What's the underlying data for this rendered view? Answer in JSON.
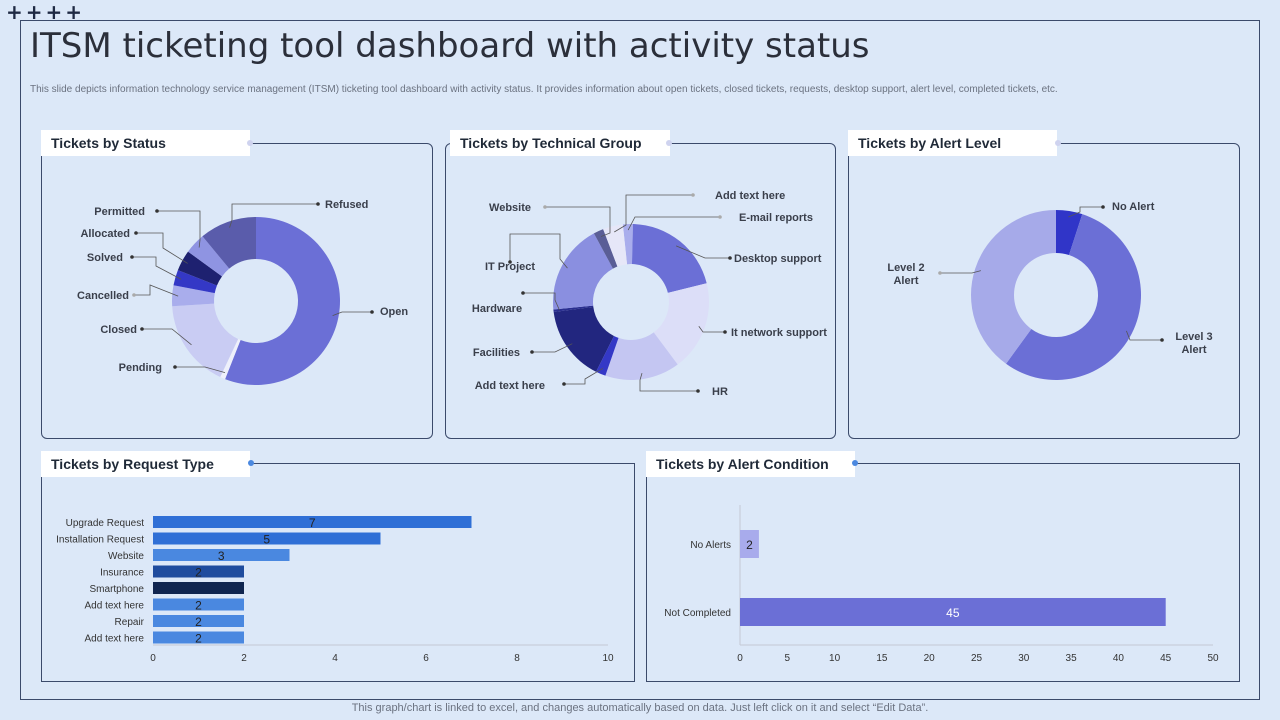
{
  "decor": {
    "plus": "++++"
  },
  "header": {
    "title": "ITSM ticketing tool dashboard with activity status",
    "subtitle": "This slide depicts information technology service management (ITSM) ticketing tool dashboard with activity status. It provides information about open tickets, closed tickets, requests, desktop support, alert level, completed tickets, etc."
  },
  "footer": {
    "note": "This graph/chart is linked to excel, and changes automatically based on data. Just left click on it and select “Edit Data”."
  },
  "panels": {
    "status": "Tickets by Status",
    "technical": "Tickets by Technical Group",
    "alert_level": "Tickets by Alert Level",
    "request_type": "Tickets by Request Type",
    "alert_condition": "Tickets by Alert Condition"
  },
  "chart_data": [
    {
      "id": "status",
      "type": "pie",
      "title": "Tickets by Status",
      "slices": [
        {
          "label": "Open",
          "value": 56,
          "color": "#6b6fd6"
        },
        {
          "label": "Pending",
          "value": 1,
          "color": "#eef0fb"
        },
        {
          "label": "Closed",
          "value": 17,
          "color": "#c9ccf3"
        },
        {
          "label": "Cancelled",
          "value": 4,
          "color": "#a9adec"
        },
        {
          "label": "Solved",
          "value": 3,
          "color": "#3438c6"
        },
        {
          "label": "Allocated",
          "value": 4,
          "color": "#1e2170"
        },
        {
          "label": "Permitted",
          "value": 4,
          "color": "#8f94e2"
        },
        {
          "label": "Refused",
          "value": 11,
          "color": "#5a5cab"
        }
      ]
    },
    {
      "id": "technical",
      "type": "pie",
      "title": "Tickets by Technical Group",
      "slices": [
        {
          "label": "E-mail reports",
          "value": 2,
          "color": "#a9adec"
        },
        {
          "label": "Desktop support",
          "value": 20,
          "color": "#6b6fd6"
        },
        {
          "label": "It network support",
          "value": 18,
          "color": "#dcdef8"
        },
        {
          "label": "HR",
          "value": 15,
          "color": "#c4c6f2"
        },
        {
          "label": "Add text here",
          "value": 2,
          "color": "#3438c6"
        },
        {
          "label": "Facilities",
          "value": 15,
          "color": "#22267f"
        },
        {
          "label": "Hardware",
          "value": 0.5,
          "color": "#2a2e90"
        },
        {
          "label": "IT Project",
          "value": 18,
          "color": "#8a8fe0"
        },
        {
          "label": "Website",
          "value": 2,
          "color": "#5a5e96"
        },
        {
          "label": "Add text here",
          "value": 4,
          "color": "#e6e7f8"
        }
      ]
    },
    {
      "id": "alert_level",
      "type": "pie",
      "title": "Tickets by Alert Level",
      "slices": [
        {
          "label": "No Alert",
          "value": 5,
          "color": "#3035c8"
        },
        {
          "label": "Level 3 Alert",
          "value": 55,
          "color": "#6b6fd6"
        },
        {
          "label": "Level 2 Alert",
          "value": 40,
          "color": "#a6aae9"
        }
      ]
    },
    {
      "id": "request_type",
      "type": "bar",
      "orientation": "horizontal",
      "title": "Tickets by Request Type",
      "categories": [
        "Upgrade Request",
        "Installation Request",
        "Website",
        "Insurance",
        "Smartphone",
        "Add text here",
        "Repair",
        "Add text here"
      ],
      "values": [
        7,
        5,
        3,
        2,
        2,
        2,
        2,
        2
      ],
      "value_labels": [
        "7",
        "5",
        "3",
        "2",
        "",
        "2",
        "2",
        "2"
      ],
      "colors": [
        "#2f6fd6",
        "#2f6fd6",
        "#4a88e0",
        "#1f4c9e",
        "#0f2550",
        "#4a88e0",
        "#4a88e0",
        "#4a88e0"
      ],
      "xlim": [
        0,
        10
      ],
      "xticks": [
        0,
        2,
        4,
        6,
        8,
        10
      ]
    },
    {
      "id": "alert_condition",
      "type": "bar",
      "orientation": "horizontal",
      "title": "Tickets by Alert Condition",
      "categories": [
        "No Alerts",
        "Not Completed"
      ],
      "values": [
        2,
        45
      ],
      "colors": [
        "#a8abec",
        "#6b6fd6"
      ],
      "xlim": [
        0,
        50
      ],
      "xticks": [
        0,
        5,
        10,
        15,
        20,
        25,
        30,
        35,
        40,
        45,
        50
      ]
    }
  ]
}
